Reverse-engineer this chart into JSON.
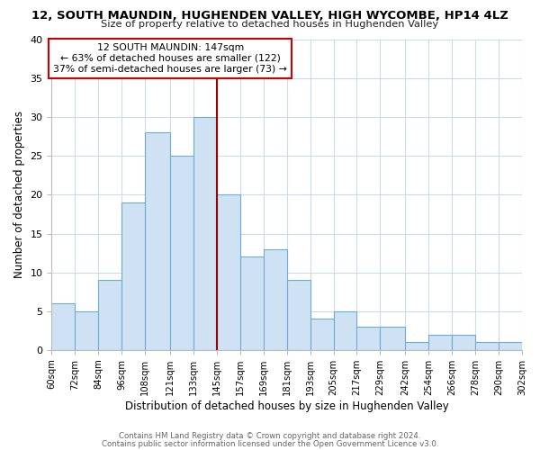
{
  "title": "12, SOUTH MAUNDIN, HUGHENDEN VALLEY, HIGH WYCOMBE, HP14 4LZ",
  "subtitle": "Size of property relative to detached houses in Hughenden Valley",
  "xlabel": "Distribution of detached houses by size in Hughenden Valley",
  "ylabel": "Number of detached properties",
  "bin_edges": [
    60,
    72,
    84,
    96,
    108,
    121,
    133,
    145,
    157,
    169,
    181,
    193,
    205,
    217,
    229,
    242,
    254,
    266,
    278,
    290,
    302
  ],
  "bin_labels": [
    "60sqm",
    "72sqm",
    "84sqm",
    "96sqm",
    "108sqm",
    "121sqm",
    "133sqm",
    "145sqm",
    "157sqm",
    "169sqm",
    "181sqm",
    "193sqm",
    "205sqm",
    "217sqm",
    "229sqm",
    "242sqm",
    "254sqm",
    "266sqm",
    "278sqm",
    "290sqm",
    "302sqm"
  ],
  "counts": [
    6,
    5,
    9,
    19,
    28,
    25,
    30,
    20,
    12,
    13,
    9,
    4,
    5,
    3,
    3,
    1,
    2,
    2,
    1,
    1
  ],
  "bar_color": "#cfe2f3",
  "bar_edge_color": "#6aaed6",
  "vline_x": 145,
  "vline_color": "#990000",
  "ylim": [
    0,
    40
  ],
  "yticks": [
    0,
    5,
    10,
    15,
    20,
    25,
    30,
    35,
    40
  ],
  "annotation_line1": "12 SOUTH MAUNDIN: 147sqm",
  "annotation_line2": "← 63% of detached houses are smaller (122)",
  "annotation_line3": "37% of semi-detached houses are larger (73) →",
  "annotation_box_color": "#ffffff",
  "annotation_box_edge_color": "#cc0000",
  "footer_line1": "Contains HM Land Registry data © Crown copyright and database right 2024.",
  "footer_line2": "Contains public sector information licensed under the Open Government Licence v3.0.",
  "background_color": "#ffffff",
  "grid_color": "#d0daea"
}
